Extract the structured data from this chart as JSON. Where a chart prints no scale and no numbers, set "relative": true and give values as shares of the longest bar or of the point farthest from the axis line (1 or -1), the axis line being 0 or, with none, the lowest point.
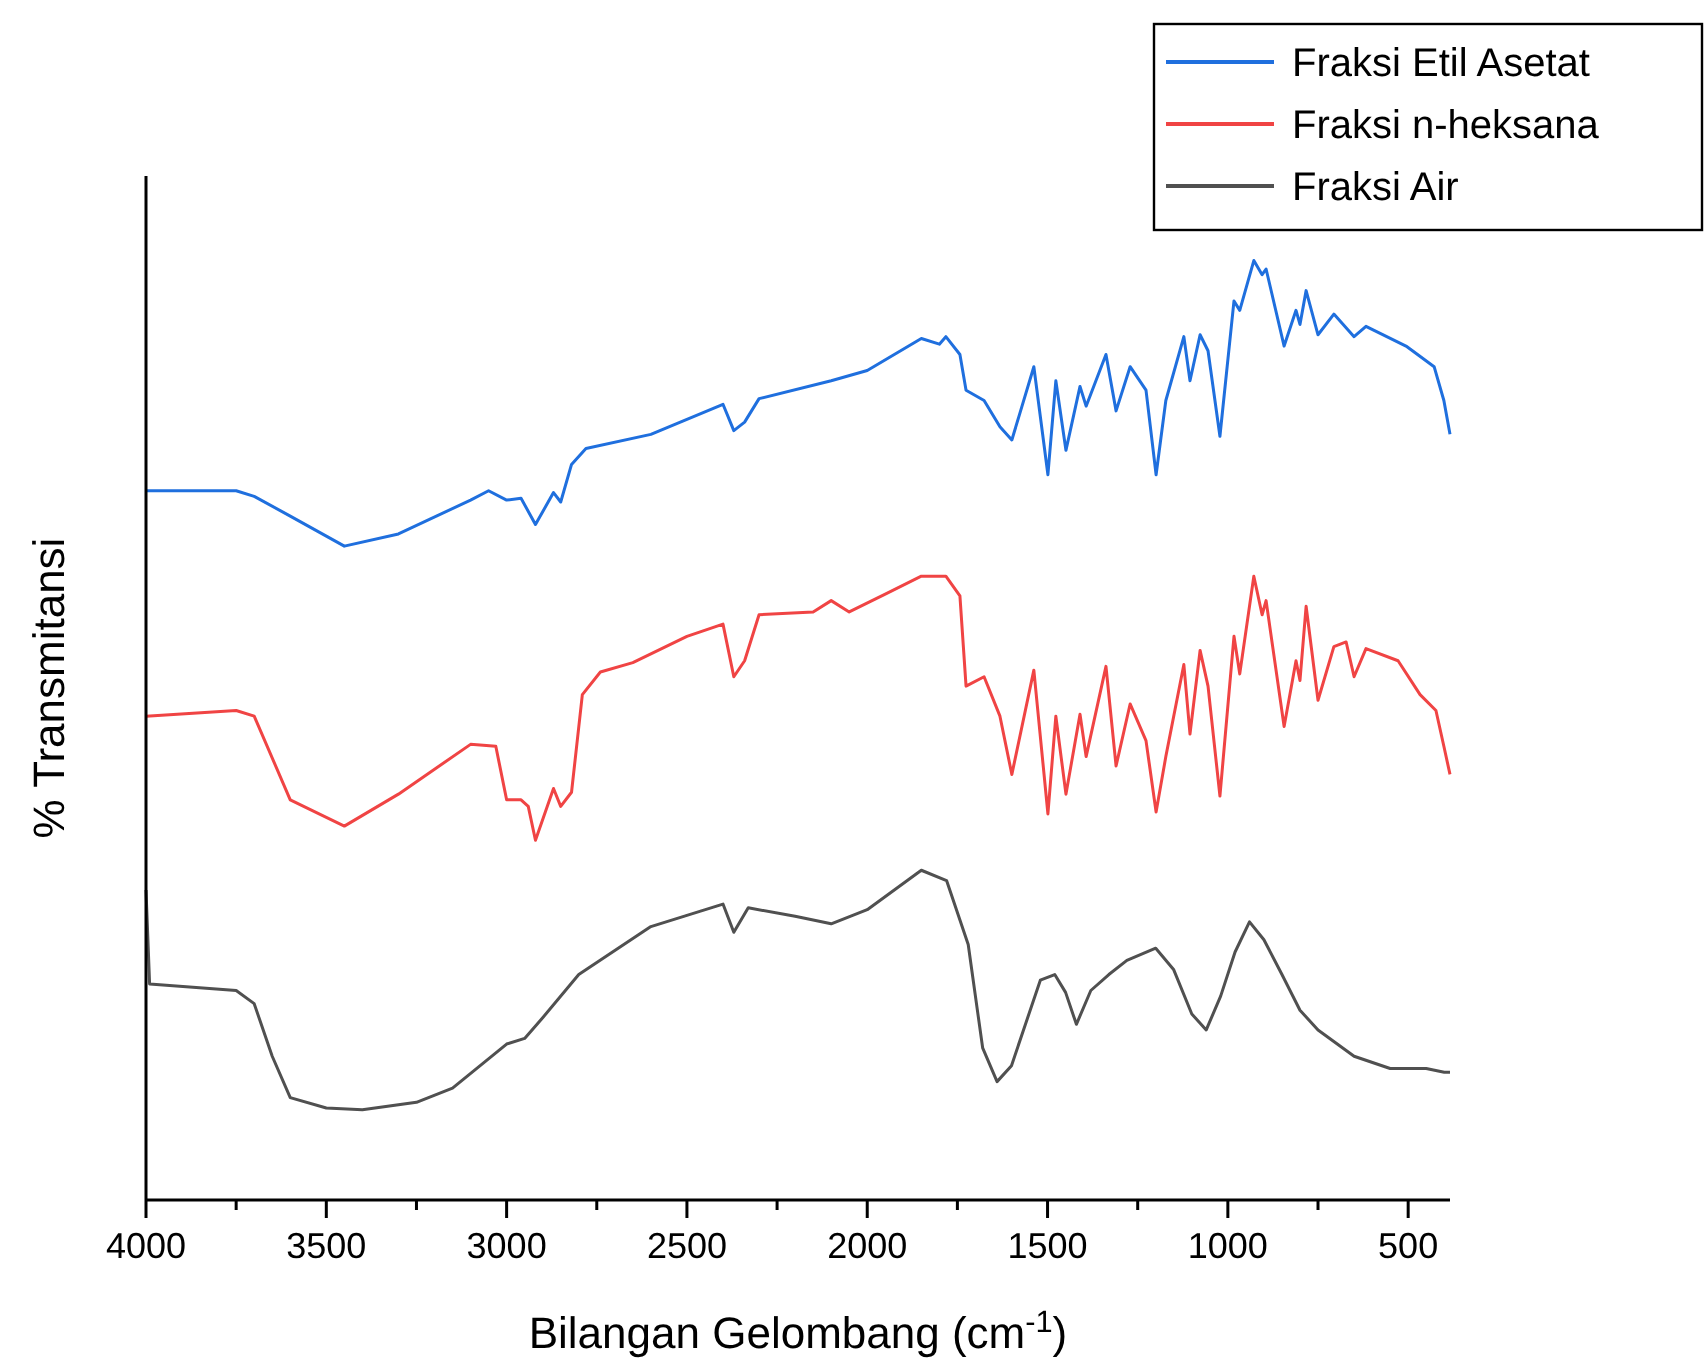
{
  "chart_data": {
    "type": "line",
    "relative": true,
    "xlabel": "Bilangan Gelombang (cm$^{-1}$)",
    "ylabel": "% Transmitansi",
    "legend": "top right",
    "grid": false,
    "marker": "none",
    "line_style": "solid",
    "xlim": [
      4000,
      384
    ],
    "xticks": [
      4000,
      {
        "value": 3750,
        "label": null
      },
      3500,
      {
        "value": 3250,
        "label": null
      },
      3000,
      {
        "value": 2750,
        "label": null
      },
      2500,
      {
        "value": 2250,
        "label": null
      },
      2000,
      {
        "value": 1750,
        "label": null
      },
      1500,
      {
        "value": 1250,
        "label": null
      },
      1000,
      {
        "value": 750,
        "label": null
      },
      500
    ],
    "series": [
      {
        "name": "Fraksi Etil Asetat",
        "color": "#1f6fde",
        "x": [
          4000,
          3750,
          3700,
          3600,
          3450,
          3300,
          3100,
          3050,
          3000,
          2960,
          2920,
          2870,
          2850,
          2820,
          2780,
          2600,
          2400,
          2370,
          2340,
          2300,
          2100,
          2000,
          1850,
          1800,
          1782,
          1743,
          1726,
          1676,
          1632,
          1599,
          1538,
          1499,
          1477,
          1449,
          1410,
          1393,
          1338,
          1310,
          1271,
          1227,
          1199,
          1172,
          1122,
          1105,
          1077,
          1055,
          1022,
          983,
          967,
          928,
          905,
          894,
          844,
          811,
          800,
          783,
          750,
          706,
          650,
          617,
          506,
          428,
          401,
          384
        ],
        "values": [
          0.755,
          0.755,
          0.749,
          0.728,
          0.696,
          0.709,
          0.745,
          0.755,
          0.745,
          0.747,
          0.719,
          0.753,
          0.743,
          0.783,
          0.8,
          0.815,
          0.847,
          0.819,
          0.828,
          0.853,
          0.872,
          0.883,
          0.917,
          0.911,
          0.919,
          0.9,
          0.862,
          0.851,
          0.823,
          0.809,
          0.887,
          0.772,
          0.872,
          0.798,
          0.866,
          0.845,
          0.9,
          0.84,
          0.887,
          0.862,
          0.772,
          0.851,
          0.919,
          0.872,
          0.921,
          0.904,
          0.813,
          0.957,
          0.947,
          1,
          0.985,
          0.991,
          0.909,
          0.947,
          0.932,
          0.968,
          0.921,
          0.943,
          0.919,
          0.93,
          0.909,
          0.887,
          0.851,
          0.815
        ]
      },
      {
        "name": "Fraksi n-heksana",
        "color": "#f04444",
        "x": [
          4000,
          3750,
          3700,
          3600,
          3450,
          3300,
          3100,
          3030,
          3000,
          2960,
          2940,
          2920,
          2870,
          2850,
          2820,
          2790,
          2740,
          2650,
          2500,
          2400,
          2370,
          2340,
          2300,
          2150,
          2100,
          2050,
          1950,
          1850,
          1800,
          1782,
          1743,
          1726,
          1676,
          1632,
          1599,
          1538,
          1499,
          1477,
          1449,
          1410,
          1393,
          1338,
          1310,
          1271,
          1227,
          1199,
          1172,
          1122,
          1105,
          1077,
          1055,
          1022,
          983,
          967,
          928,
          905,
          894,
          844,
          811,
          800,
          783,
          750,
          706,
          672,
          650,
          617,
          528,
          467,
          423,
          401,
          384
        ],
        "values": [
          0.515,
          0.521,
          0.515,
          0.426,
          0.398,
          0.432,
          0.485,
          0.483,
          0.426,
          0.426,
          0.419,
          0.383,
          0.438,
          0.419,
          0.434,
          0.538,
          0.562,
          0.572,
          0.6,
          0.613,
          0.557,
          0.574,
          0.623,
          0.626,
          0.638,
          0.626,
          0.645,
          0.664,
          0.664,
          0.664,
          0.643,
          0.547,
          0.557,
          0.515,
          0.453,
          0.564,
          0.411,
          0.515,
          0.432,
          0.517,
          0.472,
          0.568,
          0.462,
          0.528,
          0.489,
          0.413,
          0.472,
          0.57,
          0.496,
          0.585,
          0.547,
          0.43,
          0.6,
          0.56,
          0.664,
          0.623,
          0.638,
          0.504,
          0.574,
          0.553,
          0.632,
          0.532,
          0.589,
          0.594,
          0.557,
          0.587,
          0.574,
          0.538,
          0.521,
          0.483,
          0.453
        ]
      },
      {
        "name": "Fraksi Air",
        "color": "#505050",
        "x": [
          4000,
          3990,
          3750,
          3700,
          3650,
          3600,
          3500,
          3400,
          3250,
          3150,
          3000,
          2950,
          2900,
          2800,
          2600,
          2400,
          2370,
          2330,
          2200,
          2100,
          2000,
          1850,
          1780,
          1720,
          1680,
          1640,
          1600,
          1520,
          1480,
          1450,
          1420,
          1380,
          1330,
          1280,
          1200,
          1150,
          1100,
          1060,
          1020,
          980,
          940,
          900,
          850,
          800,
          750,
          650,
          550,
          450,
          400,
          384
        ],
        "values": [
          0.33,
          0.23,
          0.223,
          0.209,
          0.153,
          0.109,
          0.098,
          0.096,
          0.104,
          0.119,
          0.166,
          0.172,
          0.194,
          0.24,
          0.291,
          0.315,
          0.285,
          0.311,
          0.302,
          0.294,
          0.309,
          0.351,
          0.34,
          0.272,
          0.162,
          0.126,
          0.143,
          0.234,
          0.24,
          0.221,
          0.187,
          0.223,
          0.24,
          0.255,
          0.268,
          0.245,
          0.198,
          0.181,
          0.217,
          0.264,
          0.296,
          0.277,
          0.24,
          0.202,
          0.181,
          0.153,
          0.14,
          0.14,
          0.136,
          0.136
        ]
      }
    ]
  }
}
